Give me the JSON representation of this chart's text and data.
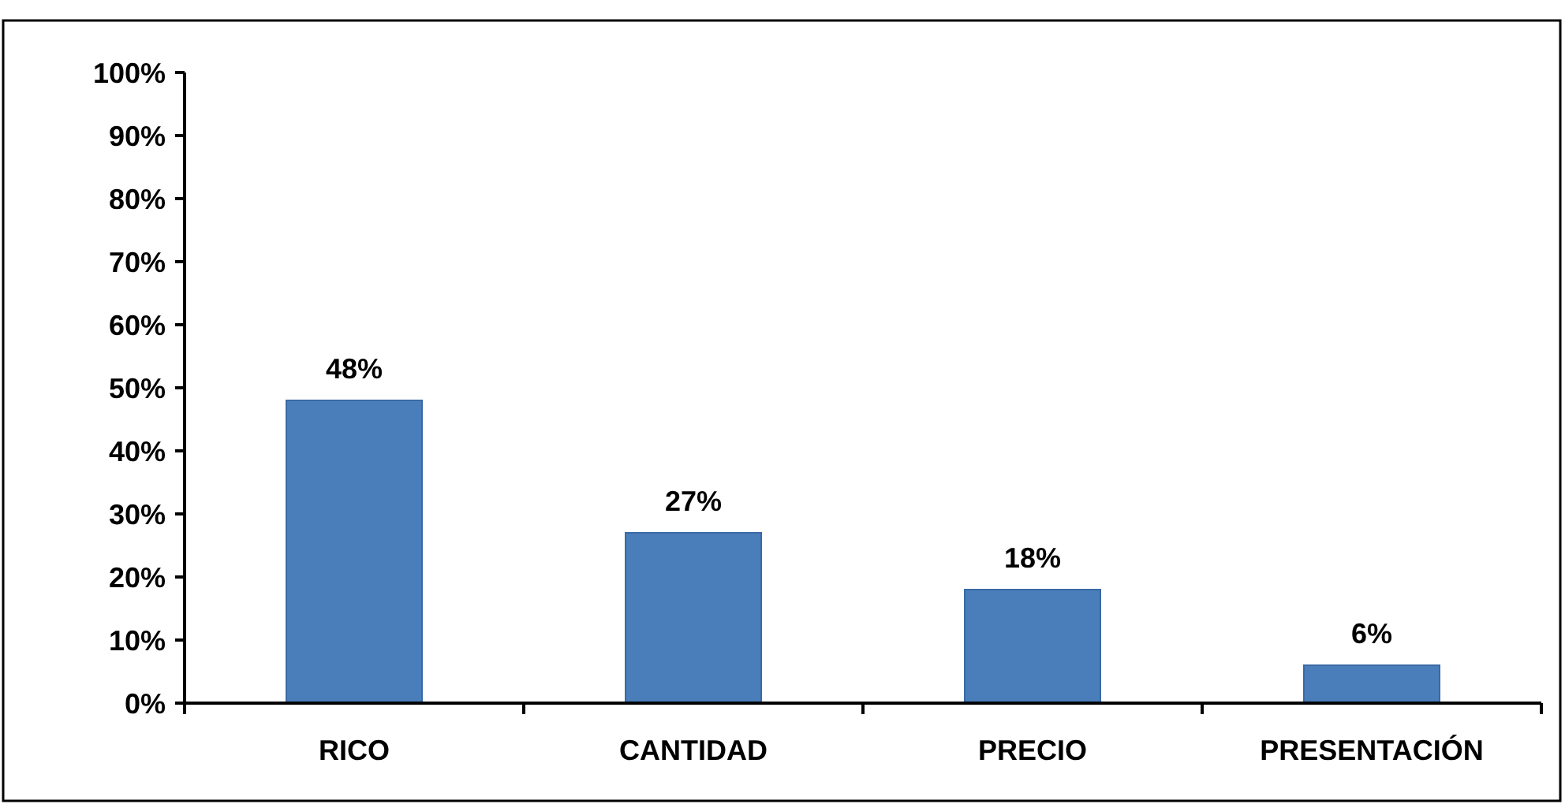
{
  "chart_data": {
    "type": "bar",
    "categories": [
      "RICO",
      "CANTIDAD",
      "PRECIO",
      "PRESENTACIÓN"
    ],
    "values": [
      48,
      27,
      18,
      6
    ],
    "value_labels": [
      "48%",
      "27%",
      "18%",
      "6%"
    ],
    "color": "#4a7ebb",
    "ylim": [
      0,
      100
    ],
    "yticks": [
      {
        "value": 0,
        "label": "0%"
      },
      {
        "value": 10,
        "label": "10%"
      },
      {
        "value": 20,
        "label": "20%"
      },
      {
        "value": 30,
        "label": "30%"
      },
      {
        "value": 40,
        "label": "40%"
      },
      {
        "value": 50,
        "label": "50%"
      },
      {
        "value": 60,
        "label": "60%"
      },
      {
        "value": 70,
        "label": "70%"
      },
      {
        "value": 80,
        "label": "80%"
      },
      {
        "value": 90,
        "label": "90%"
      },
      {
        "value": 100,
        "label": "100%"
      }
    ]
  }
}
